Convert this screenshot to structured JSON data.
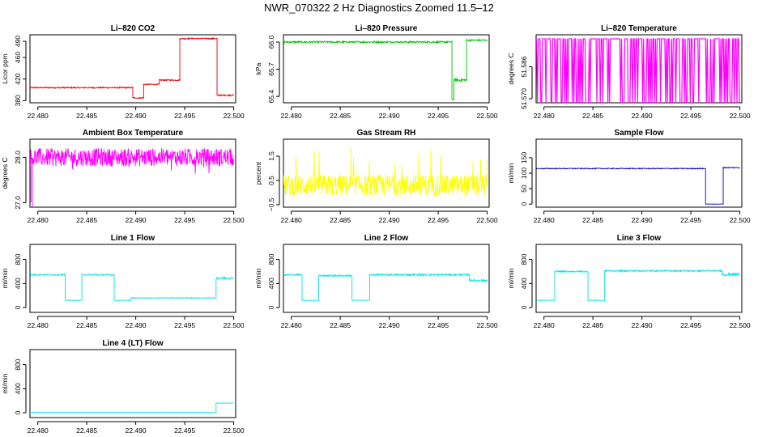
{
  "figure_title": "NWR_070322  2 Hz Diagnostics Zoomed 11.5–12",
  "chart_data": [
    {
      "id": "licor-co2",
      "type": "line",
      "title": "Li–820 CO2",
      "ylabel": "Licor ppm",
      "color": "#e00000",
      "xlim": [
        22.4792,
        22.5002
      ],
      "ylim": [
        376,
        502
      ],
      "x_ticks": [
        22.48,
        22.485,
        22.49,
        22.495,
        22.5
      ],
      "x_tick_labels": [
        "22.480",
        "22.485",
        "22.490",
        "22.495",
        "22.500"
      ],
      "y_ticks": [
        380,
        420,
        460,
        490
      ],
      "y_tick_labels": [
        "380",
        "420",
        "460",
        "490"
      ],
      "segments": [
        [
          22.4792,
          22.4897,
          404,
          1.2
        ],
        [
          22.4897,
          22.4908,
          385,
          1.2
        ],
        [
          22.4908,
          22.4924,
          410,
          1.2
        ],
        [
          22.4924,
          22.4945,
          418,
          1.2
        ],
        [
          22.4945,
          22.4983,
          495,
          1.2
        ],
        [
          22.4983,
          22.5,
          390,
          1.2
        ]
      ]
    },
    {
      "id": "licor-pressure",
      "type": "line",
      "title": "Li–820 Pressure",
      "ylabel": "kPa",
      "color": "#00c000",
      "xlim": [
        22.4792,
        22.5002
      ],
      "ylim": [
        65.33,
        66.08
      ],
      "x_ticks": [
        22.48,
        22.485,
        22.49,
        22.495,
        22.5
      ],
      "x_tick_labels": [
        "22.480",
        "22.485",
        "22.490",
        "22.495",
        "22.500"
      ],
      "y_ticks": [
        65.4,
        65.7,
        66.0
      ],
      "y_tick_labels": [
        "65.4",
        "65.7",
        "66.0"
      ],
      "segments": [
        [
          22.4792,
          22.4964,
          66.0,
          0.01
        ],
        [
          22.4964,
          22.4966,
          65.37,
          0.01
        ],
        [
          22.4966,
          22.4979,
          65.58,
          0.02
        ],
        [
          22.4979,
          22.5,
          66.02,
          0.01
        ]
      ]
    },
    {
      "id": "licor-temperature",
      "type": "line",
      "title": "Li–820 Temperature",
      "ylabel": "degrees C",
      "color": "#ff00ff",
      "xlim": [
        22.4792,
        22.5002
      ],
      "ylim": [
        51.568,
        51.602
      ],
      "x_ticks": [
        22.48,
        22.485,
        22.49,
        22.495,
        22.5
      ],
      "x_tick_labels": [
        "22.480",
        "22.485",
        "22.490",
        "22.495",
        "22.500"
      ],
      "y_ticks": [
        51.57,
        51.586
      ],
      "y_tick_labels": [
        "51.570",
        "51.586"
      ],
      "mode": "binary",
      "low": 51.568,
      "high": 51.6
    },
    {
      "id": "ambient-box-temperature",
      "type": "line",
      "title": "Ambient Box Temperature",
      "ylabel": "degrees C",
      "color": "#ff00ff",
      "xlim": [
        22.4792,
        22.5002
      ],
      "ylim": [
        26.9,
        28.4
      ],
      "x_ticks": [
        22.48,
        22.485,
        22.49,
        22.495,
        22.5
      ],
      "x_tick_labels": [
        "22.480",
        "22.485",
        "22.490",
        "22.495",
        "22.500"
      ],
      "y_ticks": [
        27.0,
        28.0
      ],
      "y_tick_labels": [
        "27.0",
        "28.0"
      ],
      "segments": [
        [
          22.4792,
          22.5,
          28.0,
          0.2
        ]
      ]
    },
    {
      "id": "gas-stream-rh",
      "type": "line",
      "title": "Gas Stream RH",
      "ylabel": "percent",
      "color": "#ffff00",
      "xlim": [
        22.4792,
        22.5002
      ],
      "ylim": [
        -0.6,
        2.2
      ],
      "x_ticks": [
        22.48,
        22.485,
        22.49,
        22.495,
        22.5
      ],
      "x_tick_labels": [
        "22.480",
        "22.485",
        "22.490",
        "22.495",
        "22.500"
      ],
      "y_ticks": [
        -0.5,
        0.5,
        1.5
      ],
      "y_tick_labels": [
        "−0.5",
        "0.5",
        "1.5"
      ],
      "segments": [
        [
          22.4792,
          22.5,
          0.3,
          0.45
        ]
      ]
    },
    {
      "id": "sample-flow",
      "type": "line",
      "title": "Sample Flow",
      "ylabel": "ml/min",
      "color": "#0000cc",
      "xlim": [
        22.4792,
        22.5002
      ],
      "ylim": [
        -10,
        210
      ],
      "x_ticks": [
        22.48,
        22.485,
        22.49,
        22.495,
        22.5
      ],
      "x_tick_labels": [
        "22.480",
        "22.485",
        "22.490",
        "22.495",
        "22.500"
      ],
      "y_ticks": [
        0,
        50,
        100,
        150
      ],
      "y_tick_labels": [
        "0",
        "50",
        "100",
        "150"
      ],
      "segments": [
        [
          22.4792,
          22.4965,
          115,
          1.5
        ],
        [
          22.4965,
          22.4983,
          0,
          0.5
        ],
        [
          22.4983,
          22.5,
          118,
          1.5
        ]
      ]
    },
    {
      "id": "line1-flow",
      "type": "line",
      "title": "Line 1 Flow",
      "ylabel": "ml/min",
      "color": "#00e5e5",
      "xlim": [
        22.4792,
        22.5002
      ],
      "ylim": [
        -80,
        1050
      ],
      "x_ticks": [
        22.48,
        22.485,
        22.49,
        22.495,
        22.5
      ],
      "x_tick_labels": [
        "22.480",
        "22.485",
        "22.490",
        "22.495",
        "22.500"
      ],
      "y_ticks": [
        0,
        400,
        800
      ],
      "y_tick_labels": [
        "0",
        "400",
        "800"
      ],
      "segments": [
        [
          22.4792,
          22.4828,
          545,
          12
        ],
        [
          22.4828,
          22.4845,
          120,
          4
        ],
        [
          22.4845,
          22.4878,
          545,
          12
        ],
        [
          22.4878,
          22.4895,
          120,
          4
        ],
        [
          22.4895,
          22.4982,
          160,
          6
        ],
        [
          22.4982,
          22.5,
          490,
          20
        ]
      ]
    },
    {
      "id": "line2-flow",
      "type": "line",
      "title": "Line 2 Flow",
      "ylabel": "ml/min",
      "color": "#00e5e5",
      "xlim": [
        22.4792,
        22.5002
      ],
      "ylim": [
        -80,
        1050
      ],
      "x_ticks": [
        22.48,
        22.485,
        22.49,
        22.495,
        22.5
      ],
      "x_tick_labels": [
        "22.480",
        "22.485",
        "22.490",
        "22.495",
        "22.500"
      ],
      "y_ticks": [
        0,
        400,
        800
      ],
      "y_tick_labels": [
        "0",
        "400",
        "800"
      ],
      "segments": [
        [
          22.4792,
          22.4811,
          545,
          12
        ],
        [
          22.4811,
          22.4828,
          120,
          4
        ],
        [
          22.4828,
          22.4862,
          530,
          14
        ],
        [
          22.4862,
          22.488,
          120,
          4
        ],
        [
          22.488,
          22.4982,
          545,
          14
        ],
        [
          22.4982,
          22.5,
          450,
          20
        ]
      ]
    },
    {
      "id": "line3-flow",
      "type": "line",
      "title": "Line 3 Flow",
      "ylabel": "ml/min",
      "color": "#00e5e5",
      "xlim": [
        22.4792,
        22.5002
      ],
      "ylim": [
        -80,
        1050
      ],
      "x_ticks": [
        22.48,
        22.485,
        22.49,
        22.495,
        22.5
      ],
      "x_tick_labels": [
        "22.480",
        "22.485",
        "22.490",
        "22.495",
        "22.500"
      ],
      "y_ticks": [
        0,
        400,
        800
      ],
      "y_tick_labels": [
        "0",
        "400",
        "800"
      ],
      "segments": [
        [
          22.4792,
          22.4811,
          120,
          4
        ],
        [
          22.4811,
          22.4845,
          600,
          12
        ],
        [
          22.4845,
          22.4862,
          120,
          4
        ],
        [
          22.4862,
          22.4982,
          610,
          12
        ],
        [
          22.4982,
          22.5,
          550,
          25
        ]
      ]
    },
    {
      "id": "line4-flow",
      "type": "line",
      "title": "Line 4 (LT) Flow",
      "ylabel": "ml/min",
      "color": "#00e5e5",
      "xlim": [
        22.4792,
        22.5002
      ],
      "ylim": [
        -80,
        1050
      ],
      "x_ticks": [
        22.48,
        22.485,
        22.49,
        22.495,
        22.5
      ],
      "x_tick_labels": [
        "22.480",
        "22.485",
        "22.490",
        "22.495",
        "22.500"
      ],
      "y_ticks": [
        0,
        400,
        800
      ],
      "y_tick_labels": [
        "0",
        "400",
        "800"
      ],
      "segments": [
        [
          22.4792,
          22.4982,
          5,
          2
        ],
        [
          22.4982,
          22.5,
          160,
          4
        ]
      ]
    }
  ]
}
